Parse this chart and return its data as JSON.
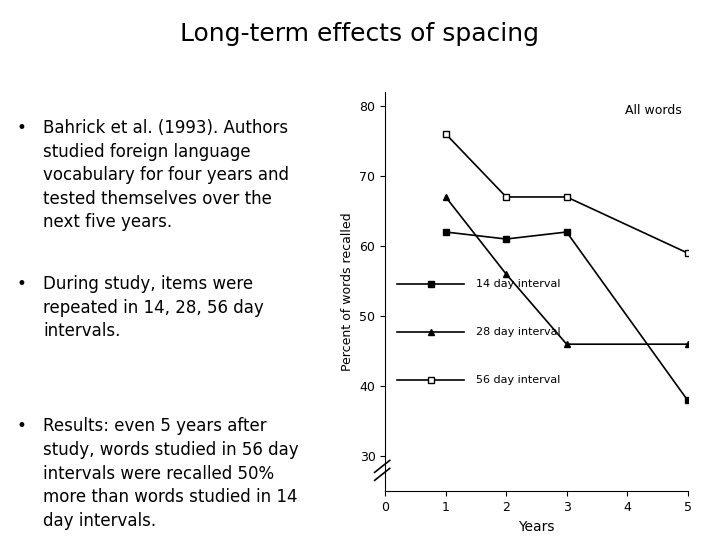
{
  "title": "Long-term effects of spacing",
  "bullet_points": [
    "Bahrick et al. (1993). Authors\nstudied foreign language\nvocabulary for four years and\ntested themselves over the\nnext five years.",
    "During study, items were\nrepeated in 14, 28, 56 day\nintervals.",
    "Results: even 5 years after\nstudy, words studied in 56 day\nintervals were recalled 50%\nmore than words studied in 14\nday intervals."
  ],
  "chart_annotation": "All words",
  "xlabel": "Years",
  "ylabel": "Percent of words recalled",
  "xlim": [
    0,
    5
  ],
  "ylim": [
    25,
    82
  ],
  "yticks": [
    30,
    40,
    50,
    60,
    70,
    80
  ],
  "xticks": [
    0,
    1,
    2,
    3,
    4,
    5
  ],
  "series": {
    "14 day interval": {
      "x": [
        1,
        2,
        3,
        5
      ],
      "y": [
        62,
        61,
        62,
        38
      ],
      "marker": "s",
      "color": "#000000",
      "linestyle": "-",
      "markersize": 5,
      "markerfacecolor": "#000000"
    },
    "28 day interval": {
      "x": [
        1,
        2,
        3,
        5
      ],
      "y": [
        67,
        56,
        46,
        46
      ],
      "marker": "^",
      "color": "#000000",
      "linestyle": "-",
      "markersize": 5,
      "markerfacecolor": "#000000"
    },
    "56 day interval": {
      "x": [
        1,
        2,
        3,
        5
      ],
      "y": [
        76,
        67,
        67,
        59
      ],
      "marker": "s",
      "color": "#000000",
      "linestyle": "-",
      "markersize": 5,
      "markerfacecolor": "#ffffff"
    }
  },
  "bg_color": "#ffffff",
  "text_color": "#000000",
  "title_fontsize": 18,
  "body_fontsize": 12,
  "axis_fontsize": 9
}
